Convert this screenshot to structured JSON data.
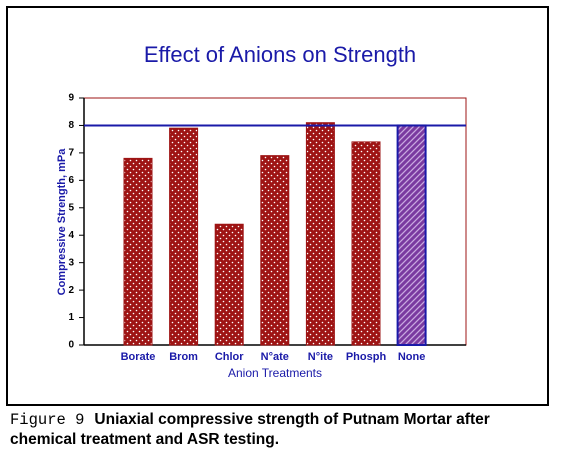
{
  "chart_data": {
    "type": "bar",
    "title": "Effect of Anions on Strength",
    "y_label": "Compressive Strength, mPa",
    "x_label": "Anion Treatments",
    "categories": [
      "Borate",
      "Brom",
      "Chlor",
      "N°ate",
      "N°ite",
      "Phosph",
      "None"
    ],
    "values": [
      6.8,
      7.9,
      4.4,
      6.9,
      8.1,
      7.4,
      8.0
    ],
    "colors": [
      "#9e1414",
      "#9e1414",
      "#9e1414",
      "#9e1414",
      "#9e1414",
      "#9e1414",
      "#7a3aa0"
    ],
    "patterns": [
      "dots",
      "dots",
      "dots",
      "dots",
      "dots",
      "dots",
      "hatch"
    ],
    "reference_line": 8.0,
    "ylim": [
      0,
      9
    ],
    "yticks": [
      0,
      1,
      2,
      3,
      4,
      5,
      6,
      7,
      8,
      9
    ]
  },
  "figure_label": "Figure 9",
  "caption": "Uniaxial compressive strength of Putnam Mortar after chemical treatment and ASR testing."
}
